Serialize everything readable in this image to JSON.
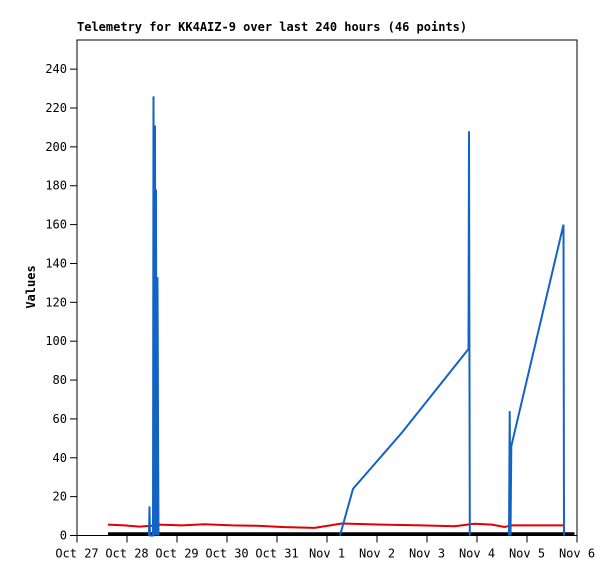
{
  "window": {
    "background_color": "#ffffff",
    "text_color": "#000000"
  },
  "chart_data": {
    "type": "line",
    "title": "Telemetry for KK4AIZ-9 over last 240 hours (46 points)",
    "station": "KK4AIZ-9",
    "hours_span": 240,
    "point_count": 46,
    "xlabel": "",
    "ylabel": "Values",
    "grid": false,
    "legend_position": "none",
    "x_axis": {
      "unit": "days since Oct 27",
      "range": [
        0,
        10
      ],
      "tick_positions": [
        0,
        1,
        2,
        3,
        4,
        5,
        6,
        7,
        8,
        9,
        10
      ],
      "tick_labels": [
        "Oct 27",
        "Oct 28",
        "Oct 29",
        "Oct 30",
        "Oct 31",
        "Nov 1",
        "Nov 2",
        "Nov 3",
        "Nov 4",
        "Nov 5",
        "Nov 6"
      ]
    },
    "y_axis": {
      "range": [
        0,
        255
      ],
      "ticks": [
        0,
        20,
        40,
        60,
        80,
        100,
        120,
        140,
        160,
        180,
        200,
        220,
        240
      ]
    },
    "series": [
      {
        "name": "channel-black",
        "color": "#000000",
        "stroke_width": 3,
        "segments": [
          [
            [
              0.62,
              0.9
            ],
            [
              9.95,
              0.9
            ]
          ]
        ]
      },
      {
        "name": "channel-red",
        "color": "#e10000",
        "stroke_width": 2,
        "segments": [
          [
            [
              0.62,
              5.6
            ],
            [
              0.95,
              5.2
            ],
            [
              1.25,
              4.6
            ],
            [
              1.5,
              5.0
            ],
            [
              1.65,
              5.6
            ],
            [
              2.1,
              5.2
            ],
            [
              2.55,
              5.8
            ],
            [
              3.1,
              5.2
            ],
            [
              3.6,
              5.0
            ],
            [
              4.15,
              4.3
            ],
            [
              4.75,
              3.9
            ],
            [
              5.3,
              6.2
            ],
            [
              6.1,
              5.6
            ],
            [
              6.9,
              5.2
            ],
            [
              7.55,
              4.8
            ],
            [
              7.95,
              6.0
            ],
            [
              8.3,
              5.6
            ],
            [
              8.55,
              4.4
            ],
            [
              8.7,
              5.2
            ],
            [
              9.73,
              5.2
            ]
          ]
        ]
      },
      {
        "name": "channel-blue",
        "color": "#1263c6",
        "stroke_width": 2,
        "segments": [
          [
            [
              1.44,
              0
            ],
            [
              1.45,
              15
            ],
            [
              1.46,
              0
            ],
            [
              1.52,
              0
            ],
            [
              1.53,
              226
            ],
            [
              1.545,
              0
            ],
            [
              1.56,
              211
            ],
            [
              1.57,
              0
            ],
            [
              1.58,
              178
            ],
            [
              1.59,
              0
            ],
            [
              1.61,
              133
            ],
            [
              1.615,
              94
            ],
            [
              1.62,
              60
            ],
            [
              1.63,
              0
            ]
          ],
          [
            [
              5.26,
              0
            ],
            [
              5.52,
              24
            ],
            [
              6.5,
              53
            ],
            [
              7.83,
              96
            ],
            [
              7.84,
              208
            ],
            [
              7.855,
              0
            ]
          ],
          [
            [
              8.64,
              0
            ],
            [
              8.655,
              64
            ],
            [
              8.67,
              0
            ],
            [
              8.685,
              46
            ],
            [
              9.73,
              160
            ],
            [
              9.74,
              0
            ]
          ]
        ]
      }
    ]
  }
}
